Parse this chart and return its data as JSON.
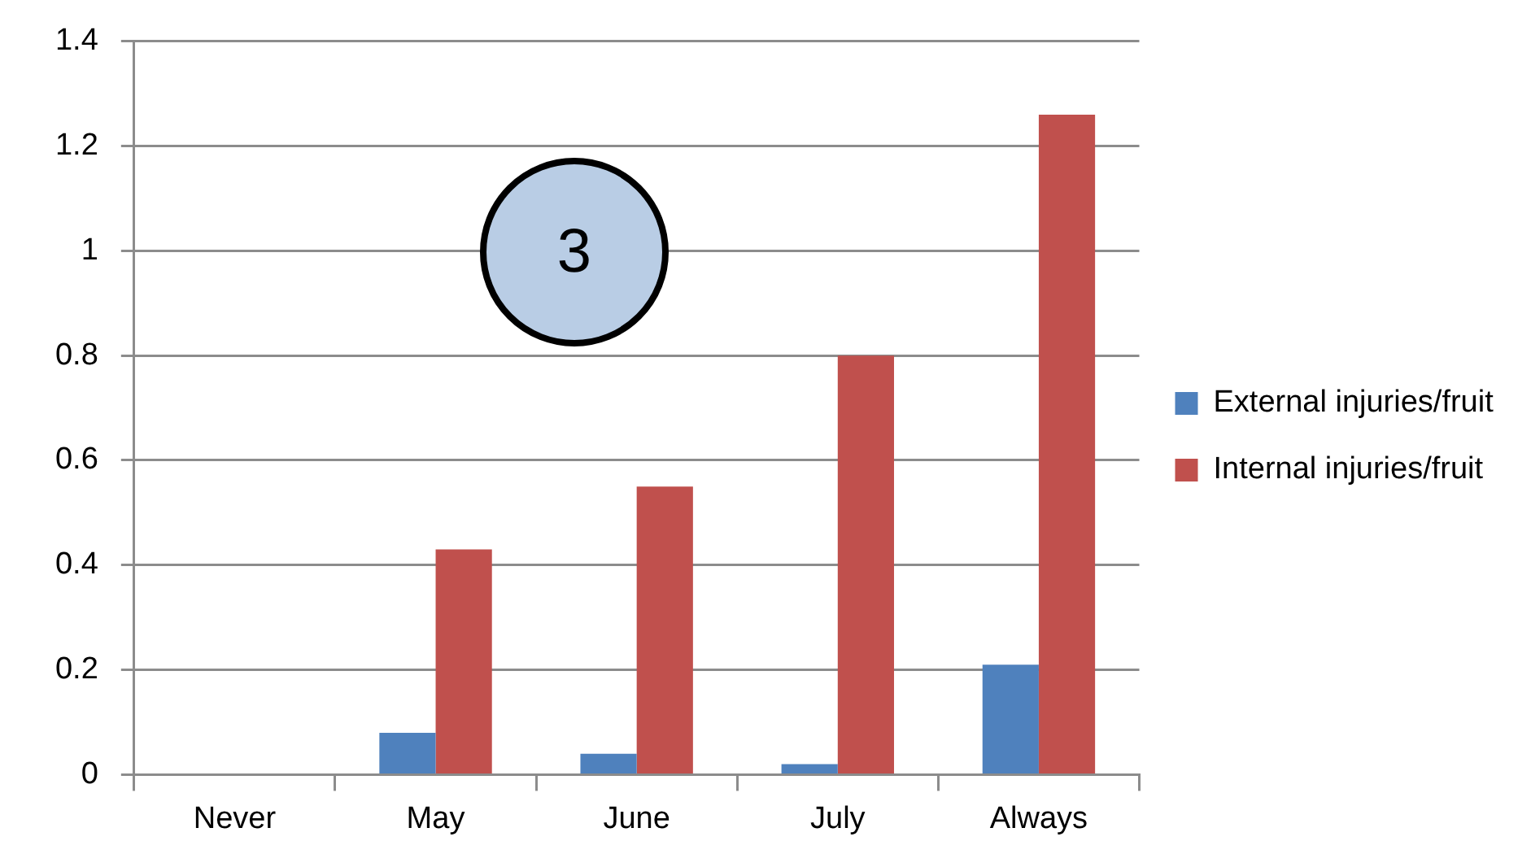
{
  "chart_data": {
    "type": "bar",
    "categories": [
      "Never",
      "May",
      "June",
      "July",
      "Always"
    ],
    "series": [
      {
        "name": "External injuries/fruit",
        "color": "#4f81bd",
        "values": [
          0,
          0.08,
          0.04,
          0.02,
          0.21
        ]
      },
      {
        "name": "Internal injuries/fruit",
        "color": "#c0504d",
        "values": [
          0,
          0.43,
          0.55,
          0.8,
          1.26
        ]
      }
    ],
    "ylim": [
      0,
      1.4
    ],
    "yticks": [
      0,
      0.2,
      0.4,
      0.6,
      0.8,
      1,
      1.2,
      1.4
    ],
    "grid": "y",
    "legend": "right",
    "annotations": [
      "3"
    ]
  }
}
